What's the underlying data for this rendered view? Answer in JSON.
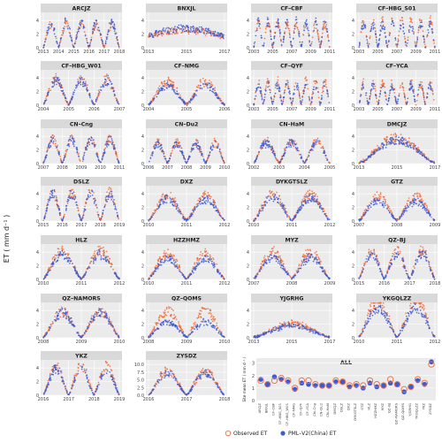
{
  "figure": {
    "ylabel": "ET ( mm d⁻¹ )"
  },
  "colors": {
    "observed": "#f26b38",
    "model": "#3b5bd6",
    "strip_bg": "#d9d9d9",
    "panel_bg": "#ebebeb",
    "grid": "#ffffff"
  },
  "chart_data": [
    {
      "type": "scatter",
      "title": "ARCJZ",
      "x_ticks": [
        "2013",
        "2014",
        "2015",
        "2016",
        "2017",
        "2018"
      ],
      "y_ticks": [
        "0",
        "2",
        "4"
      ],
      "ylim": [
        0,
        5.2
      ],
      "years": [
        2013,
        2018
      ],
      "peak_obs": 3.6,
      "peak_model": 3.9,
      "cycles": "annual",
      "series": [
        {
          "name": "Observed ET"
        },
        {
          "name": "PML–V2(China) ET"
        }
      ]
    },
    {
      "type": "scatter",
      "title": "BNXJL",
      "x_ticks": [
        "2013",
        "2015",
        "2017"
      ],
      "y_ticks": [
        "0",
        "2",
        "4"
      ],
      "ylim": [
        0,
        5.2
      ],
      "years": [
        2013,
        2018
      ],
      "peak_obs": 3.0,
      "peak_model": 3.2,
      "cycles": "flat",
      "series": [
        {
          "name": "Observed ET"
        },
        {
          "name": "PML–V2(China) ET"
        }
      ]
    },
    {
      "type": "scatter",
      "title": "CF–CBF",
      "x_ticks": [
        "2003",
        "2005",
        "2007",
        "2009",
        "2011"
      ],
      "y_ticks": [
        "0",
        "2",
        "4"
      ],
      "ylim": [
        0,
        5.2
      ],
      "years": [
        2003,
        2011
      ],
      "peak_obs": 3.8,
      "peak_model": 4.0,
      "cycles": "annual",
      "series": [
        {
          "name": "Observed ET"
        },
        {
          "name": "PML–V2(China) ET"
        }
      ]
    },
    {
      "type": "scatter",
      "title": "CF–HBG_S01",
      "x_ticks": [
        "2003",
        "2005",
        "2007",
        "2009",
        "2011"
      ],
      "y_ticks": [
        "0",
        "2",
        "4"
      ],
      "ylim": [
        0,
        5.2
      ],
      "years": [
        2003,
        2011
      ],
      "peak_obs": 4.2,
      "peak_model": 3.6,
      "cycles": "annual",
      "series": [
        {
          "name": "Observed ET"
        },
        {
          "name": "PML–V2(China) ET"
        }
      ]
    },
    {
      "type": "scatter",
      "title": "CF–HBG_W01",
      "x_ticks": [
        "2004",
        "2005",
        "2006",
        "2007"
      ],
      "y_ticks": [
        "0",
        "2",
        "4"
      ],
      "ylim": [
        0,
        5.2
      ],
      "years": [
        2004,
        2007
      ],
      "peak_obs": 4.0,
      "peak_model": 3.8,
      "cycles": "annual",
      "series": [
        {
          "name": "Observed ET"
        },
        {
          "name": "PML–V2(China) ET"
        }
      ]
    },
    {
      "type": "scatter",
      "title": "CF–NMG",
      "x_ticks": [
        "2004",
        "2005",
        "2006"
      ],
      "y_ticks": [
        "0",
        "2",
        "4"
      ],
      "ylim": [
        0,
        5.2
      ],
      "years": [
        2004,
        2006
      ],
      "peak_obs": 3.6,
      "peak_model": 3.0,
      "cycles": "annual",
      "series": [
        {
          "name": "Observed ET"
        },
        {
          "name": "PML–V2(China) ET"
        }
      ]
    },
    {
      "type": "scatter",
      "title": "CF–QYF",
      "x_ticks": [
        "2003",
        "2005",
        "2007",
        "2009",
        "2011"
      ],
      "y_ticks": [
        "0",
        "2",
        "4"
      ],
      "ylim": [
        0,
        5.2
      ],
      "years": [
        2003,
        2011
      ],
      "peak_obs": 3.8,
      "peak_model": 3.2,
      "cycles": "annual",
      "series": [
        {
          "name": "Observed ET"
        },
        {
          "name": "PML–V2(China) ET"
        }
      ]
    },
    {
      "type": "scatter",
      "title": "CF–YCA",
      "x_ticks": [
        "2003",
        "2005",
        "2007",
        "2009",
        "2011"
      ],
      "y_ticks": [
        "0",
        "2",
        "4"
      ],
      "ylim": [
        0,
        5.2
      ],
      "years": [
        2003,
        2011
      ],
      "peak_obs": 3.4,
      "peak_model": 3.0,
      "cycles": "annual",
      "series": [
        {
          "name": "Observed ET"
        },
        {
          "name": "PML–V2(China) ET"
        }
      ]
    },
    {
      "type": "scatter",
      "title": "CN–Cng",
      "x_ticks": [
        "2007",
        "2008",
        "2009",
        "2010",
        "2011"
      ],
      "y_ticks": [
        "0",
        "2",
        "4"
      ],
      "ylim": [
        0,
        5.2
      ],
      "years": [
        2007,
        2011
      ],
      "peak_obs": 3.8,
      "peak_model": 3.6,
      "cycles": "annual",
      "series": [
        {
          "name": "Observed ET"
        },
        {
          "name": "PML–V2(China) ET"
        }
      ]
    },
    {
      "type": "scatter",
      "title": "CN–Du2",
      "x_ticks": [
        "2006",
        "2007",
        "2008",
        "2009",
        "2010"
      ],
      "y_ticks": [
        "0",
        "2",
        "4"
      ],
      "ylim": [
        0,
        5.2
      ],
      "years": [
        2006,
        2010
      ],
      "peak_obs": 3.2,
      "peak_model": 3.0,
      "cycles": "annual",
      "series": [
        {
          "name": "Observed ET"
        },
        {
          "name": "PML–V2(China) ET"
        }
      ]
    },
    {
      "type": "scatter",
      "title": "CN–HaM",
      "x_ticks": [
        "2002",
        "2003",
        "2004",
        "2005"
      ],
      "y_ticks": [
        "0",
        "2",
        "4"
      ],
      "ylim": [
        0,
        5.2
      ],
      "years": [
        2002,
        2005
      ],
      "peak_obs": 3.4,
      "peak_model": 3.2,
      "cycles": "annual",
      "series": [
        {
          "name": "Observed ET"
        },
        {
          "name": "PML–V2(China) ET"
        }
      ]
    },
    {
      "type": "scatter",
      "title": "DMCJZ",
      "x_ticks": [
        "2013",
        "2015",
        "2017"
      ],
      "y_ticks": [
        "0",
        "2",
        "4"
      ],
      "ylim": [
        0,
        5.2
      ],
      "years": [
        2013,
        2018
      ],
      "peak_obs": 4.0,
      "peak_model": 3.6,
      "cycles": "hump",
      "series": [
        {
          "name": "Observed ET"
        },
        {
          "name": "PML–V2(China) ET"
        }
      ]
    },
    {
      "type": "scatter",
      "title": "DSLZ",
      "x_ticks": [
        "2015",
        "2016",
        "2017",
        "2018",
        "2019"
      ],
      "y_ticks": [
        "0",
        "2",
        "4"
      ],
      "ylim": [
        0,
        5.2
      ],
      "years": [
        2015,
        2019
      ],
      "peak_obs": 4.4,
      "peak_model": 4.2,
      "cycles": "annual",
      "series": [
        {
          "name": "Observed ET"
        },
        {
          "name": "PML–V2(China) ET"
        }
      ]
    },
    {
      "type": "scatter",
      "title": "DXZ",
      "x_ticks": [
        "2010",
        "2011",
        "2012"
      ],
      "y_ticks": [
        "0",
        "2",
        "4"
      ],
      "ylim": [
        0,
        5.2
      ],
      "years": [
        2010,
        2012
      ],
      "peak_obs": 4.0,
      "peak_model": 3.4,
      "cycles": "annual",
      "series": [
        {
          "name": "Observed ET"
        },
        {
          "name": "PML–V2(China) ET"
        }
      ]
    },
    {
      "type": "scatter",
      "title": "DYKGTSLZ",
      "x_ticks": [
        "2010",
        "2011",
        "2012"
      ],
      "y_ticks": [
        "0",
        "2",
        "4"
      ],
      "ylim": [
        0,
        5.2
      ],
      "years": [
        2010,
        2012
      ],
      "peak_obs": 4.2,
      "peak_model": 3.6,
      "cycles": "annual",
      "series": [
        {
          "name": "Observed ET"
        },
        {
          "name": "PML–V2(China) ET"
        }
      ]
    },
    {
      "type": "scatter",
      "title": "GTZ",
      "x_ticks": [
        "2007",
        "2008",
        "2009"
      ],
      "y_ticks": [
        "0",
        "2",
        "4"
      ],
      "ylim": [
        0,
        5.2
      ],
      "years": [
        2007,
        2009
      ],
      "peak_obs": 3.8,
      "peak_model": 3.0,
      "cycles": "annual",
      "series": [
        {
          "name": "Observed ET"
        },
        {
          "name": "PML–V2(China) ET"
        }
      ]
    },
    {
      "type": "scatter",
      "title": "HLZ",
      "x_ticks": [
        "2010",
        "2011",
        "2012"
      ],
      "y_ticks": [
        "0",
        "2",
        "4"
      ],
      "ylim": [
        0,
        5.2
      ],
      "years": [
        2010,
        2012
      ],
      "peak_obs": 4.4,
      "peak_model": 3.8,
      "cycles": "annual",
      "series": [
        {
          "name": "Observed ET"
        },
        {
          "name": "PML–V2(China) ET"
        }
      ]
    },
    {
      "type": "scatter",
      "title": "HZZHMZ",
      "x_ticks": [
        "2010",
        "2011",
        "2012"
      ],
      "y_ticks": [
        "0",
        "2",
        "4"
      ],
      "ylim": [
        0,
        5.2
      ],
      "years": [
        2010,
        2012
      ],
      "peak_obs": 4.0,
      "peak_model": 3.2,
      "cycles": "annual",
      "series": [
        {
          "name": "Observed ET"
        },
        {
          "name": "PML–V2(China) ET"
        }
      ]
    },
    {
      "type": "scatter",
      "title": "MYZ",
      "x_ticks": [
        "2007",
        "2008",
        "2009"
      ],
      "y_ticks": [
        "0",
        "2",
        "4"
      ],
      "ylim": [
        0,
        5.2
      ],
      "years": [
        2007,
        2009
      ],
      "peak_obs": 4.2,
      "peak_model": 3.4,
      "cycles": "annual",
      "series": [
        {
          "name": "Observed ET"
        },
        {
          "name": "PML–V2(China) ET"
        }
      ]
    },
    {
      "type": "scatter",
      "title": "QZ–BJ",
      "x_ticks": [
        "2015",
        "2016",
        "2017",
        "2018"
      ],
      "y_ticks": [
        "0",
        "2",
        "4"
      ],
      "ylim": [
        0,
        5.2
      ],
      "years": [
        2015,
        2018
      ],
      "peak_obs": 4.4,
      "peak_model": 4.0,
      "cycles": "annual",
      "series": [
        {
          "name": "Observed ET"
        },
        {
          "name": "PML–V2(China) ET"
        }
      ]
    },
    {
      "type": "scatter",
      "title": "QZ–NAMORS",
      "x_ticks": [
        "2008",
        "2009",
        "2010"
      ],
      "y_ticks": [
        "0",
        "2",
        "4"
      ],
      "ylim": [
        0,
        5.2
      ],
      "years": [
        2008,
        2010
      ],
      "peak_obs": 4.0,
      "peak_model": 3.8,
      "cycles": "annual",
      "series": [
        {
          "name": "Observed ET"
        },
        {
          "name": "PML–V2(China) ET"
        }
      ]
    },
    {
      "type": "scatter",
      "title": "QZ–QOMS",
      "x_ticks": [
        "2008",
        "2009",
        "2010"
      ],
      "y_ticks": [
        "0",
        "2",
        "4"
      ],
      "ylim": [
        0,
        5.2
      ],
      "years": [
        2008,
        2010
      ],
      "peak_obs": 4.2,
      "peak_model": 2.4,
      "cycles": "annual",
      "series": [
        {
          "name": "Observed ET"
        },
        {
          "name": "PML–V2(China) ET"
        }
      ]
    },
    {
      "type": "scatter",
      "title": "YJGRHG",
      "x_ticks": [
        "2013",
        "2015",
        "2017"
      ],
      "y_ticks": [
        "0",
        "2",
        "4"
      ],
      "ylim": [
        0,
        5.2
      ],
      "years": [
        2013,
        2018
      ],
      "peak_obs": 2.2,
      "peak_model": 1.8,
      "cycles": "hump",
      "series": [
        {
          "name": "Observed ET"
        },
        {
          "name": "PML–V2(China) ET"
        }
      ]
    },
    {
      "type": "scatter",
      "title": "YKGQLZZ",
      "x_ticks": [
        "2010",
        "2011",
        "2012"
      ],
      "y_ticks": [
        "0",
        "2",
        "4"
      ],
      "ylim": [
        0,
        5.2
      ],
      "years": [
        2010,
        2012
      ],
      "peak_obs": 5.8,
      "peak_model": 4.6,
      "cycles": "annual",
      "series": [
        {
          "name": "Observed ET"
        },
        {
          "name": "PML–V2(China) ET"
        }
      ]
    },
    {
      "type": "scatter",
      "title": "YKZ",
      "x_ticks": [
        "2016",
        "2017",
        "2018",
        "2019"
      ],
      "y_ticks": [
        "0",
        "2",
        "4"
      ],
      "ylim": [
        0,
        5.2
      ],
      "years": [
        2016,
        2019
      ],
      "peak_obs": 4.6,
      "peak_model": 4.0,
      "cycles": "annual",
      "series": [
        {
          "name": "Observed ET"
        },
        {
          "name": "PML–V2(China) ET"
        }
      ]
    },
    {
      "type": "scatter",
      "title": "ZYSDZ",
      "x_ticks": [
        "2016",
        "2017",
        "2018"
      ],
      "y_ticks": [
        "0.0",
        "2.5",
        "5.0",
        "7.5",
        "10.0"
      ],
      "ylim": [
        0,
        11.5
      ],
      "years": [
        2016,
        2018
      ],
      "peak_obs": 8.5,
      "peak_model": 7.5,
      "cycles": "annual",
      "series": [
        {
          "name": "Observed ET"
        },
        {
          "name": "PML–V2(China) ET"
        }
      ]
    },
    {
      "type": "scatter",
      "title": "ALL",
      "ylabel": "Site mean ET ( mm d⁻¹ )",
      "y_ticks": [
        "0",
        "1",
        "2",
        "3"
      ],
      "ylim": [
        0,
        3.4
      ],
      "categories": [
        "ARCJZ",
        "BNXJL",
        "CF–CBF",
        "CF–HBG_S01",
        "CF–HBG_W01",
        "CF–NMG",
        "CF–QYF",
        "CF–YCA",
        "CN–Cng",
        "CN–Du2",
        "CN–HaM",
        "DMCJZ",
        "DSLZ",
        "DXZ",
        "DYKGTSLZ",
        "GTZ",
        "HLZ",
        "HZZHMZ",
        "MYZ",
        "QZ–BJ",
        "QZ–NAMORS",
        "QZ–QOMS",
        "YJGRHG",
        "YKGQLZZ",
        "YKZ",
        "ZYSDZ"
      ],
      "series": [
        {
          "name": "Observed ET",
          "marker": "open-circle",
          "values": [
            1.6,
            1.3,
            1.6,
            1.8,
            1.6,
            1.0,
            1.6,
            1.6,
            1.3,
            1.2,
            1.2,
            1.6,
            1.5,
            1.2,
            1.3,
            1.2,
            1.6,
            1.3,
            1.2,
            1.7,
            1.3,
            0.9,
            1.1,
            1.7,
            1.4,
            2.9
          ]
        },
        {
          "name": "PML–V2(China) ET",
          "marker": "filled-circle",
          "values": [
            1.7,
            1.3,
            1.9,
            1.7,
            1.5,
            0.9,
            1.4,
            1.3,
            1.2,
            1.2,
            1.2,
            1.5,
            1.5,
            1.1,
            1.2,
            1.0,
            1.4,
            1.1,
            1.2,
            1.4,
            1.3,
            0.7,
            1.1,
            1.6,
            1.3,
            3.1
          ]
        }
      ],
      "legend": [
        "Observed ET",
        "PML–V2(China) ET"
      ]
    }
  ]
}
